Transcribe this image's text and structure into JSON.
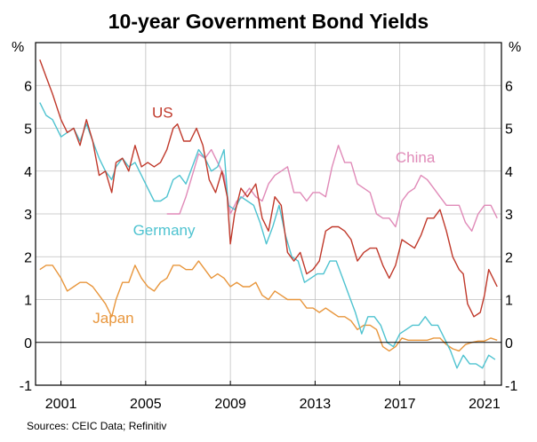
{
  "chart_data": {
    "type": "line",
    "title": "10-year Government Bond Yields",
    "ylabel_left": "%",
    "ylabel_right": "%",
    "ylim": [
      -1,
      7
    ],
    "yticks": [
      -1,
      0,
      1,
      2,
      3,
      4,
      5,
      6
    ],
    "xlim": [
      1999.8,
      2021.8
    ],
    "xticks": [
      2001,
      2005,
      2009,
      2013,
      2017,
      2021
    ],
    "source": "Sources: CEIC Data; Refinitiv",
    "colors": {
      "US": "#c0392b",
      "Germany": "#4fc3d0",
      "Japan": "#e8963c",
      "China": "#e08ab8",
      "grid": "#bfbfbf",
      "zero_line": "#000000"
    },
    "series": [
      {
        "name": "US",
        "label": "US",
        "x": [
          2000.0,
          2000.3,
          2000.6,
          2001.0,
          2001.3,
          2001.6,
          2001.9,
          2002.2,
          2002.5,
          2002.8,
          2003.1,
          2003.4,
          2003.6,
          2003.9,
          2004.2,
          2004.5,
          2004.8,
          2005.1,
          2005.4,
          2005.7,
          2006.0,
          2006.3,
          2006.5,
          2006.8,
          2007.1,
          2007.4,
          2007.7,
          2008.0,
          2008.3,
          2008.6,
          2008.85,
          2009.0,
          2009.2,
          2009.5,
          2009.8,
          2010.2,
          2010.5,
          2010.8,
          2011.1,
          2011.4,
          2011.7,
          2012.0,
          2012.3,
          2012.6,
          2012.9,
          2013.2,
          2013.5,
          2013.8,
          2014.1,
          2014.4,
          2014.7,
          2015.0,
          2015.3,
          2015.6,
          2015.9,
          2016.2,
          2016.5,
          2016.8,
          2017.1,
          2017.4,
          2017.7,
          2018.0,
          2018.3,
          2018.6,
          2018.9,
          2019.2,
          2019.5,
          2019.8,
          2020.0,
          2020.2,
          2020.5,
          2020.8,
          2021.0,
          2021.2,
          2021.4,
          2021.6
        ],
        "values": [
          6.6,
          6.2,
          5.8,
          5.2,
          4.9,
          5.0,
          4.6,
          5.2,
          4.7,
          3.9,
          4.0,
          3.5,
          4.2,
          4.3,
          4.0,
          4.6,
          4.1,
          4.2,
          4.1,
          4.2,
          4.5,
          5.0,
          5.1,
          4.7,
          4.7,
          5.0,
          4.6,
          3.8,
          3.5,
          4.0,
          3.4,
          2.3,
          3.0,
          3.6,
          3.4,
          3.7,
          2.9,
          2.6,
          3.4,
          3.2,
          2.1,
          1.9,
          2.1,
          1.6,
          1.7,
          1.9,
          2.6,
          2.7,
          2.7,
          2.6,
          2.4,
          1.9,
          2.1,
          2.2,
          2.2,
          1.8,
          1.5,
          1.8,
          2.4,
          2.3,
          2.2,
          2.5,
          2.9,
          2.9,
          3.1,
          2.6,
          2.0,
          1.7,
          1.6,
          0.9,
          0.6,
          0.7,
          1.1,
          1.7,
          1.5,
          1.3
        ]
      },
      {
        "name": "Germany",
        "label": "Germany",
        "x": [
          2000.0,
          2000.3,
          2000.6,
          2001.0,
          2001.3,
          2001.6,
          2001.9,
          2002.2,
          2002.5,
          2002.8,
          2003.1,
          2003.4,
          2003.6,
          2003.9,
          2004.2,
          2004.5,
          2004.8,
          2005.1,
          2005.4,
          2005.7,
          2006.0,
          2006.3,
          2006.6,
          2006.9,
          2007.2,
          2007.5,
          2007.8,
          2008.1,
          2008.4,
          2008.7,
          2008.9,
          2009.2,
          2009.5,
          2009.8,
          2010.1,
          2010.4,
          2010.7,
          2011.0,
          2011.3,
          2011.6,
          2011.9,
          2012.2,
          2012.5,
          2012.8,
          2013.1,
          2013.4,
          2013.7,
          2014.0,
          2014.3,
          2014.6,
          2014.9,
          2015.2,
          2015.5,
          2015.8,
          2016.1,
          2016.4,
          2016.7,
          2017.0,
          2017.3,
          2017.6,
          2017.9,
          2018.2,
          2018.5,
          2018.8,
          2019.1,
          2019.4,
          2019.7,
          2020.0,
          2020.3,
          2020.6,
          2020.9,
          2021.2,
          2021.5
        ],
        "values": [
          5.6,
          5.3,
          5.2,
          4.8,
          4.9,
          5.0,
          4.7,
          5.1,
          4.7,
          4.3,
          4.0,
          3.8,
          4.1,
          4.3,
          4.1,
          4.2,
          3.9,
          3.6,
          3.3,
          3.3,
          3.4,
          3.8,
          3.9,
          3.7,
          4.1,
          4.5,
          4.3,
          4.0,
          4.1,
          4.5,
          3.2,
          3.1,
          3.4,
          3.3,
          3.2,
          2.8,
          2.3,
          2.7,
          3.2,
          2.5,
          2.0,
          1.9,
          1.4,
          1.5,
          1.6,
          1.6,
          1.9,
          1.9,
          1.5,
          1.1,
          0.7,
          0.2,
          0.6,
          0.6,
          0.4,
          0.0,
          -0.1,
          0.2,
          0.3,
          0.4,
          0.4,
          0.6,
          0.4,
          0.4,
          0.1,
          -0.2,
          -0.6,
          -0.3,
          -0.5,
          -0.5,
          -0.6,
          -0.3,
          -0.4
        ]
      },
      {
        "name": "Japan",
        "label": "Japan",
        "x": [
          2000.0,
          2000.3,
          2000.6,
          2001.0,
          2001.3,
          2001.6,
          2001.9,
          2002.2,
          2002.5,
          2002.8,
          2003.1,
          2003.4,
          2003.6,
          2003.9,
          2004.2,
          2004.5,
          2004.8,
          2005.1,
          2005.4,
          2005.7,
          2006.0,
          2006.3,
          2006.6,
          2006.9,
          2007.2,
          2007.5,
          2007.8,
          2008.1,
          2008.4,
          2008.7,
          2009.0,
          2009.3,
          2009.6,
          2009.9,
          2010.2,
          2010.5,
          2010.8,
          2011.1,
          2011.4,
          2011.7,
          2012.0,
          2012.3,
          2012.6,
          2012.9,
          2013.2,
          2013.5,
          2013.8,
          2014.1,
          2014.4,
          2014.7,
          2015.0,
          2015.3,
          2015.6,
          2015.9,
          2016.2,
          2016.5,
          2016.8,
          2017.1,
          2017.4,
          2017.7,
          2018.0,
          2018.3,
          2018.6,
          2018.9,
          2019.2,
          2019.5,
          2019.8,
          2020.1,
          2020.4,
          2020.7,
          2021.0,
          2021.3,
          2021.6
        ],
        "values": [
          1.7,
          1.8,
          1.8,
          1.5,
          1.2,
          1.3,
          1.4,
          1.4,
          1.3,
          1.1,
          0.9,
          0.6,
          1.0,
          1.4,
          1.4,
          1.8,
          1.5,
          1.3,
          1.2,
          1.4,
          1.5,
          1.8,
          1.8,
          1.7,
          1.7,
          1.9,
          1.7,
          1.5,
          1.6,
          1.5,
          1.3,
          1.4,
          1.3,
          1.3,
          1.4,
          1.1,
          1.0,
          1.2,
          1.1,
          1.0,
          1.0,
          1.0,
          0.8,
          0.8,
          0.7,
          0.8,
          0.7,
          0.6,
          0.6,
          0.5,
          0.3,
          0.4,
          0.4,
          0.3,
          -0.1,
          -0.2,
          -0.1,
          0.1,
          0.05,
          0.05,
          0.05,
          0.05,
          0.1,
          0.1,
          -0.05,
          -0.15,
          -0.2,
          -0.05,
          0.0,
          0.03,
          0.03,
          0.1,
          0.05
        ]
      },
      {
        "name": "China",
        "label": "China",
        "x": [
          2006.0,
          2006.3,
          2006.6,
          2006.9,
          2007.2,
          2007.5,
          2007.8,
          2008.1,
          2008.4,
          2008.7,
          2009.0,
          2009.3,
          2009.6,
          2009.9,
          2010.2,
          2010.5,
          2010.8,
          2011.1,
          2011.4,
          2011.7,
          2012.0,
          2012.3,
          2012.6,
          2012.9,
          2013.2,
          2013.5,
          2013.8,
          2014.1,
          2014.4,
          2014.7,
          2015.0,
          2015.3,
          2015.6,
          2015.9,
          2016.2,
          2016.5,
          2016.8,
          2017.1,
          2017.4,
          2017.7,
          2018.0,
          2018.3,
          2018.6,
          2018.9,
          2019.2,
          2019.5,
          2019.8,
          2020.1,
          2020.4,
          2020.7,
          2021.0,
          2021.3,
          2021.6
        ],
        "values": [
          3.0,
          3.0,
          3.0,
          3.4,
          3.9,
          4.4,
          4.3,
          4.5,
          4.2,
          3.9,
          3.0,
          3.3,
          3.4,
          3.6,
          3.4,
          3.3,
          3.7,
          3.9,
          4.0,
          4.1,
          3.5,
          3.5,
          3.3,
          3.5,
          3.5,
          3.4,
          4.1,
          4.6,
          4.2,
          4.2,
          3.7,
          3.6,
          3.5,
          3.0,
          2.9,
          2.9,
          2.7,
          3.3,
          3.5,
          3.6,
          3.9,
          3.8,
          3.6,
          3.4,
          3.2,
          3.2,
          3.2,
          2.8,
          2.6,
          3.0,
          3.2,
          3.2,
          2.9
        ]
      }
    ],
    "labels": [
      {
        "name": "us",
        "text": "US",
        "series": "US",
        "x": 2005.3,
        "y": 5.25
      },
      {
        "name": "germany",
        "text": "Germany",
        "series": "Germany",
        "x": 2004.4,
        "y": 2.5
      },
      {
        "name": "japan",
        "text": "Japan",
        "series": "Japan",
        "x": 2002.5,
        "y": 0.45
      },
      {
        "name": "china",
        "text": "China",
        "series": "China",
        "x": 2016.8,
        "y": 4.2
      }
    ]
  }
}
